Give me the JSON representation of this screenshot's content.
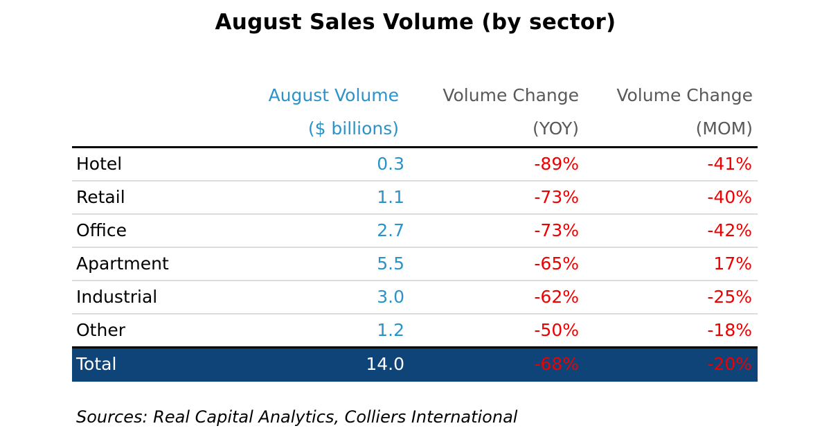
{
  "chart_data": {
    "type": "table",
    "title": "August Sales Volume (by sector)",
    "columns": [
      {
        "line1": "August Volume",
        "line2": "($ billions)"
      },
      {
        "line1": "Volume Change",
        "line2": "(YOY)"
      },
      {
        "line1": "Volume Change",
        "line2": "(MOM)"
      }
    ],
    "rows": [
      {
        "sector": "Hotel",
        "volume": "0.3",
        "yoy": "-89%",
        "mom": "-41%"
      },
      {
        "sector": "Retail",
        "volume": "1.1",
        "yoy": "-73%",
        "mom": "-40%"
      },
      {
        "sector": "Office",
        "volume": "2.7",
        "yoy": "-73%",
        "mom": "-42%"
      },
      {
        "sector": "Apartment",
        "volume": "5.5",
        "yoy": "-65%",
        "mom": "17%"
      },
      {
        "sector": "Industrial",
        "volume": "3.0",
        "yoy": "-62%",
        "mom": "-25%"
      },
      {
        "sector": "Other",
        "volume": "1.2",
        "yoy": "-50%",
        "mom": "-18%"
      }
    ],
    "total": {
      "sector": "Total",
      "volume": "14.0",
      "yoy": "-68%",
      "mom": "-20%"
    },
    "source": "Sources: Real Capital Analytics, Colliers International"
  },
  "colors": {
    "volume_header": "#2a93c9",
    "change_header": "#595959",
    "volume_value": "#2a93c9",
    "change_value": "#ee0000",
    "total_background": "#0f4479",
    "total_text": "#ffffff",
    "total_change": "#ee0000"
  }
}
